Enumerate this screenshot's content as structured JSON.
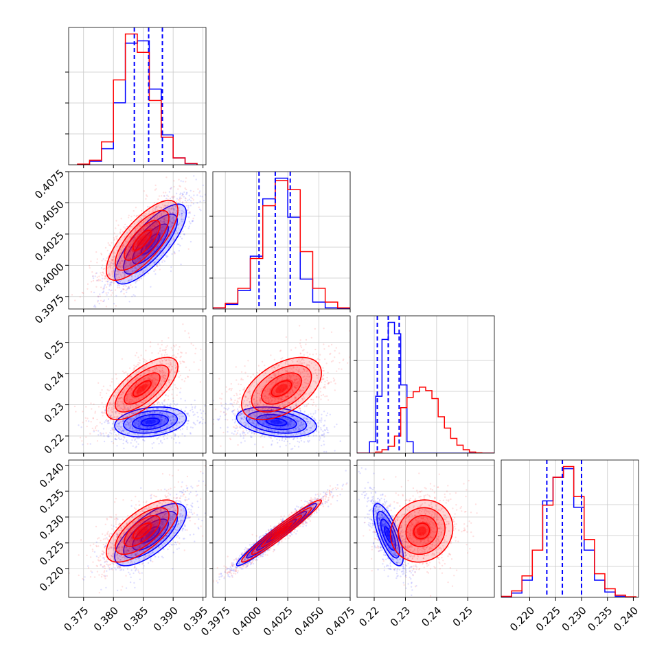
{
  "chart_data": {
    "type": "corner",
    "series": [
      {
        "color": "#0000ff"
      },
      {
        "color": "#ff0000"
      }
    ],
    "params": [
      {
        "range": [
          0.3725,
          0.3955
        ],
        "ticks": [
          "0.375",
          "0.380",
          "0.385",
          "0.390",
          "0.395"
        ],
        "tick_values": [
          0.375,
          0.38,
          0.385,
          0.39,
          0.395
        ],
        "histogram": {
          "edges": [
            0.374,
            0.376,
            0.378,
            0.38,
            0.382,
            0.384,
            0.386,
            0.388,
            0.39,
            0.392,
            0.394
          ],
          "blue": [
            0.2,
            1.5,
            7,
            27,
            53,
            54,
            33,
            13,
            3,
            0.5
          ],
          "red": [
            0.3,
            2,
            10,
            37,
            57,
            49,
            28,
            12,
            3,
            0.6
          ]
        },
        "blue_quantiles": [
          0.3835,
          0.3859,
          0.3882
        ]
      },
      {
        "range": [
          0.3965,
          0.4075
        ],
        "ticks": [
          "0.3975",
          "0.4000",
          "0.4025",
          "0.4050",
          "0.4075"
        ],
        "tick_values": [
          0.3975,
          0.4,
          0.4025,
          0.405,
          0.4075
        ],
        "histogram": {
          "edges": [
            0.3965,
            0.3975,
            0.3985,
            0.3995,
            0.4005,
            0.4015,
            0.4025,
            0.4035,
            0.4045,
            0.4055,
            0.4065,
            0.4075
          ],
          "blue": [
            0.5,
            2,
            8,
            23,
            48,
            57,
            40,
            13,
            3,
            0.5,
            0.1
          ],
          "red": [
            0.5,
            2.5,
            9,
            22,
            45,
            56,
            52,
            25,
            9,
            3,
            0.5
          ]
        },
        "blue_quantiles": [
          0.4002,
          0.4015,
          0.4027
        ]
      },
      {
        "range": [
          0.2145,
          0.2585
        ],
        "ticks": [
          "0.22",
          "0.23",
          "0.24",
          "0.25"
        ],
        "tick_values": [
          0.22,
          0.23,
          0.24,
          0.25
        ],
        "histogram": {
          "edges": [
            0.2145,
            0.2165,
            0.2185,
            0.2205,
            0.2225,
            0.2245,
            0.2265,
            0.2285,
            0.2305,
            0.2325,
            0.2345,
            0.2365,
            0.2385,
            0.2405,
            0.2425,
            0.2445,
            0.2465,
            0.2485,
            0.2505,
            0.2525,
            0.2545,
            0.2565,
            0.2585
          ],
          "blue": [
            0,
            0,
            10,
            50,
            100,
            115,
            105,
            60,
            10,
            0,
            0,
            0,
            0,
            0,
            0,
            0,
            0,
            0,
            0,
            0,
            0,
            0
          ],
          "red": [
            0,
            0,
            0,
            1,
            3,
            6,
            15,
            40,
            49,
            54,
            58,
            55,
            48,
            32,
            22,
            13,
            7,
            3,
            1,
            0.3,
            0,
            0
          ]
        },
        "blue_quantiles": [
          0.221,
          0.2245,
          0.228
        ]
      },
      {
        "range": [
          0.2145,
          0.241
        ],
        "ticks": [
          "0.220",
          "0.225",
          "0.230",
          "0.235",
          "0.240"
        ],
        "tick_values": [
          0.22,
          0.225,
          0.23,
          0.235,
          0.24
        ],
        "histogram": {
          "edges": [
            0.2145,
            0.2165,
            0.2185,
            0.2205,
            0.2225,
            0.2245,
            0.2265,
            0.2285,
            0.2305,
            0.2325,
            0.2345,
            0.2365,
            0.2385,
            0.2405
          ],
          "blue": [
            0.3,
            2,
            8,
            22,
            45,
            56,
            60,
            42,
            22,
            8,
            2.5,
            0.5,
            0.2
          ],
          "red": [
            0.5,
            3,
            10,
            22,
            43,
            56,
            61,
            47,
            27,
            11,
            4,
            1,
            0.3
          ]
        },
        "blue_quantiles": [
          0.2233,
          0.2263,
          0.23
        ]
      }
    ],
    "pairs": [
      {
        "row": 1,
        "col": 0,
        "blue": {
          "mean": [
            0.3862,
            0.4017
          ],
          "sd": [
            0.003,
            0.0016
          ],
          "rho": 0.78
        },
        "red": {
          "mean": [
            0.3848,
            0.402
          ],
          "sd": [
            0.003,
            0.0016
          ],
          "rho": 0.75
        }
      },
      {
        "row": 2,
        "col": 0,
        "blue": {
          "mean": [
            0.3862,
            0.2245
          ],
          "sd": [
            0.003,
            0.0024
          ],
          "rho": 0.25
        },
        "red": {
          "mean": [
            0.3848,
            0.2352
          ],
          "sd": [
            0.003,
            0.005
          ],
          "rho": 0.7
        }
      },
      {
        "row": 2,
        "col": 1,
        "blue": {
          "mean": [
            0.4016,
            0.2245
          ],
          "sd": [
            0.0016,
            0.0024
          ],
          "rho": -0.3
        },
        "red": {
          "mean": [
            0.402,
            0.2352
          ],
          "sd": [
            0.0016,
            0.005
          ],
          "rho": 0.5
        }
      },
      {
        "row": 3,
        "col": 0,
        "blue": {
          "mean": [
            0.3862,
            0.2266
          ],
          "sd": [
            0.003,
            0.003
          ],
          "rho": 0.7
        },
        "red": {
          "mean": [
            0.3848,
            0.2273
          ],
          "sd": [
            0.003,
            0.003
          ],
          "rho": 0.68
        }
      },
      {
        "row": 3,
        "col": 1,
        "blue": {
          "mean": [
            0.4016,
            0.2266
          ],
          "sd": [
            0.0016,
            0.003
          ],
          "rho": 0.97
        },
        "red": {
          "mean": [
            0.402,
            0.2273
          ],
          "sd": [
            0.0016,
            0.003
          ],
          "rho": 0.97
        }
      },
      {
        "row": 3,
        "col": 2,
        "blue": {
          "mean": [
            0.2245,
            0.2266
          ],
          "sd": [
            0.0024,
            0.003
          ],
          "rho": -0.72
        },
        "red": {
          "mean": [
            0.2352,
            0.2273
          ],
          "sd": [
            0.005,
            0.003
          ],
          "rho": 0.1
        }
      }
    ],
    "contour_levels_sigma": [
      0.5,
      1.0,
      1.5,
      2.0
    ],
    "grid": true
  }
}
